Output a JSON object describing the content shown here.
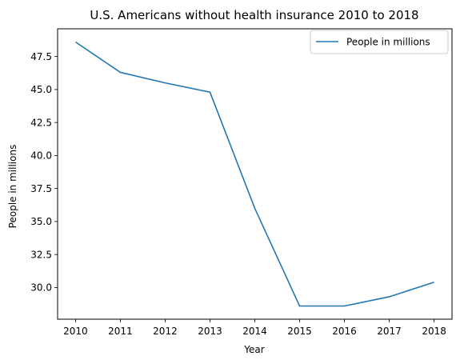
{
  "chart_data": {
    "type": "line",
    "title": "U.S. Americans without health insurance 2010 to 2018",
    "xlabel": "Year",
    "ylabel": "People in millions",
    "x": [
      2010,
      2011,
      2012,
      2013,
      2014,
      2015,
      2016,
      2017,
      2018
    ],
    "x_tick_labels": [
      "2010",
      "2011",
      "2012",
      "2013",
      "2014",
      "2015",
      "2016",
      "2017",
      "2018"
    ],
    "y_ticks": [
      30.0,
      32.5,
      35.0,
      37.5,
      40.0,
      42.5,
      45.0,
      47.5
    ],
    "y_tick_labels": [
      "30.0",
      "32.5",
      "35.0",
      "37.5",
      "40.0",
      "42.5",
      "45.0",
      "47.5"
    ],
    "series": [
      {
        "name": "People in millions",
        "color": "#1f77b4",
        "values": [
          48.6,
          46.3,
          45.5,
          44.8,
          36.0,
          28.6,
          28.6,
          29.3,
          30.4
        ]
      }
    ],
    "xlim": [
      2009.6,
      2018.4
    ],
    "ylim": [
      27.6,
      49.6
    ],
    "grid": false,
    "legend": "top-right"
  }
}
